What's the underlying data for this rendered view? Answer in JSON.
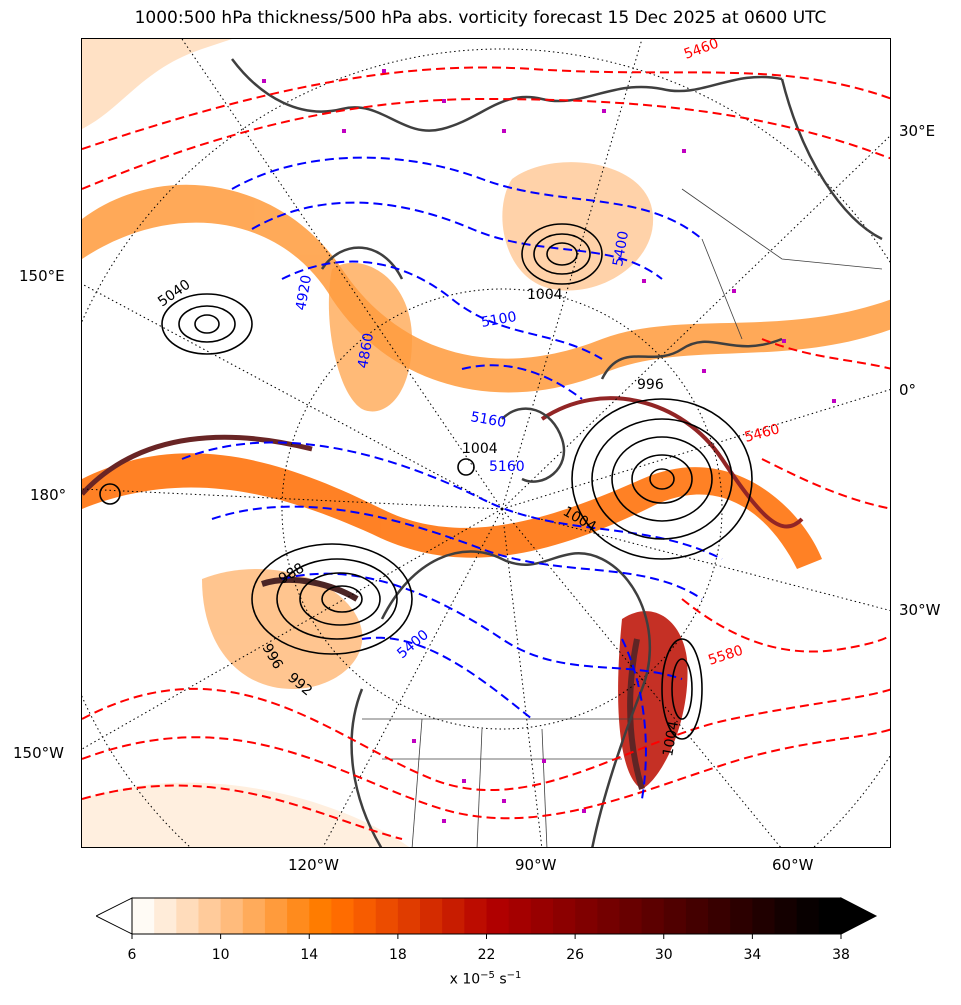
{
  "title": "1000:500 hPa thickness/500 hPa abs. vorticity forecast 15 Dec 2025 at 0600 UTC",
  "map": {
    "longitude_labels": {
      "lon_30e": "30°E",
      "lon_150e": "150°E",
      "lon_0": "0°",
      "lon_180": "180°",
      "lon_30w": "30°W",
      "lon_150w": "150°W",
      "lon_120w": "120°W",
      "lon_90w": "90°W",
      "lon_60w": "60°W"
    },
    "contour_labels": {
      "thickness_red": [
        "5580",
        "5460",
        "5460",
        "5040",
        "5400"
      ],
      "thickness_blue": [
        "5160",
        "5160",
        "5400",
        "5100",
        "4920",
        "4860",
        "4920",
        "5100",
        "5160",
        "5040"
      ],
      "pressure_black": [
        "1004",
        "1004",
        "996",
        "992",
        "988",
        "1004",
        "1004",
        "996",
        "988",
        "1004"
      ]
    },
    "colors": {
      "thickness_cold": "#0000ff",
      "thickness_warm": "#ff0000",
      "pressure": "#000000",
      "coastline": "#3f3f3f",
      "markers": "#c000c0"
    }
  },
  "colorbar": {
    "ticks": [
      "6",
      "10",
      "14",
      "18",
      "22",
      "26",
      "30",
      "34",
      "38"
    ],
    "label_prefix": "x 10",
    "label_exp1": "−5",
    "label_mid": " s",
    "label_exp2": "−1",
    "colors": [
      "#fffbf5",
      "#ffecd9",
      "#ffdcbb",
      "#ffcb9b",
      "#ffbb7c",
      "#ffab5b",
      "#ff9b3c",
      "#ff8b1d",
      "#ff7c00",
      "#ff6c00",
      "#f75c00",
      "#ec4c00",
      "#e03c00",
      "#d42c00",
      "#c81c00",
      "#bc0c00",
      "#b00000",
      "#a40000",
      "#980000",
      "#8c0000",
      "#800000",
      "#740000",
      "#680000",
      "#5c0000",
      "#500000",
      "#440000",
      "#380000",
      "#2c0000",
      "#200000",
      "#140000",
      "#080000",
      "#000000"
    ],
    "extend": "both"
  }
}
